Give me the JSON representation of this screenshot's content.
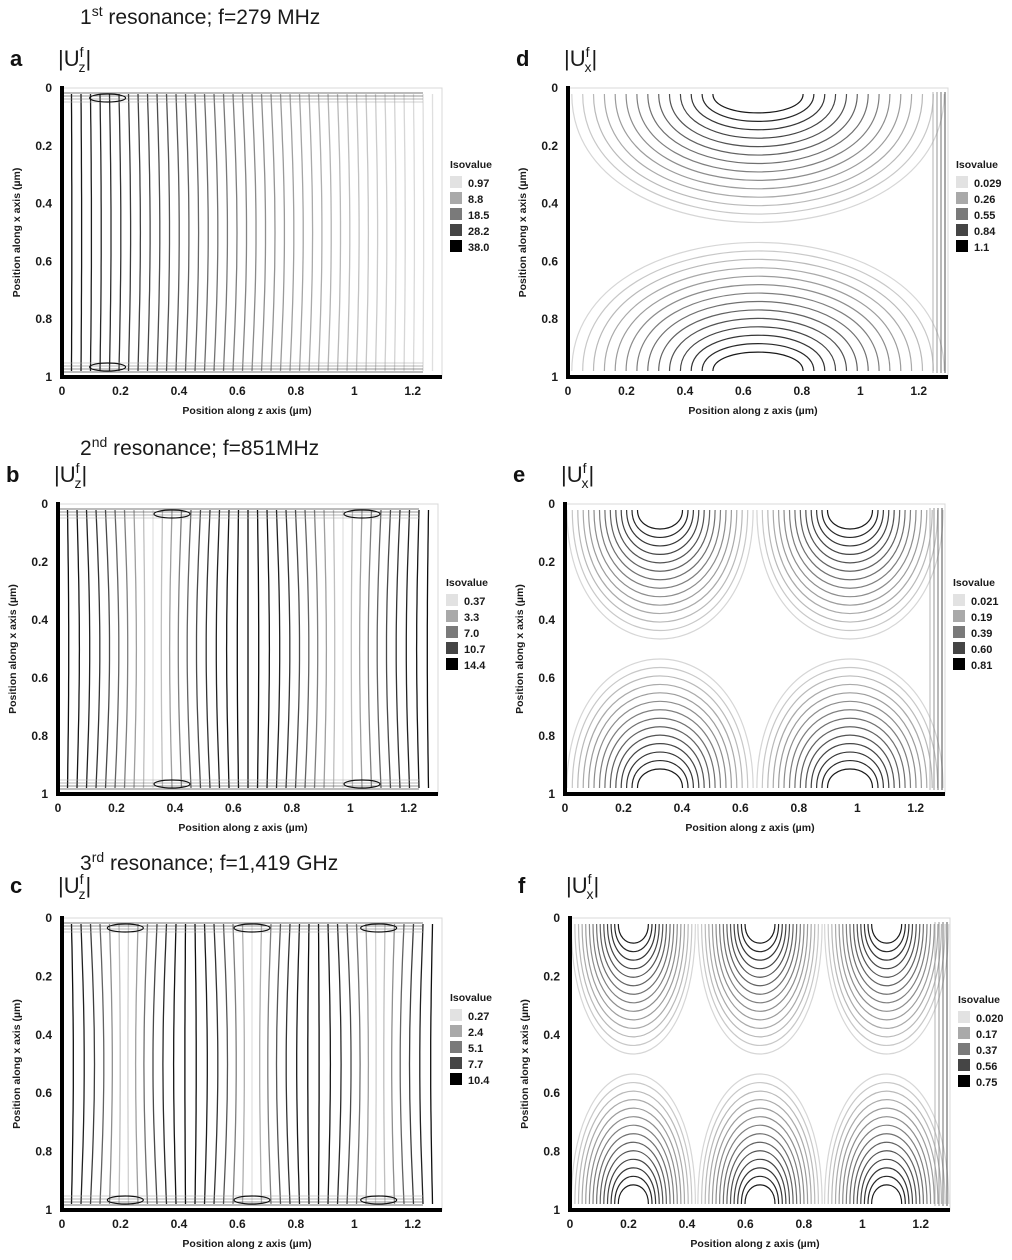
{
  "figure": {
    "resonance_titles": [
      {
        "ordinal": "1",
        "sup": "st",
        "text": " resonance;   f=279 MHz"
      },
      {
        "ordinal": "2",
        "sup": "nd",
        "text": " resonance;   f=851MHz"
      },
      {
        "ordinal": "3",
        "sup": "rd",
        "text": " resonance;   f=1,419 GHz"
      }
    ]
  },
  "chart_data": [
    {
      "type": "contour",
      "panel": "a",
      "quantity": {
        "base": "|U",
        "sup": "f",
        "sub": "z",
        "close": "|"
      },
      "resonance": 1,
      "field": "Uz",
      "antinodes": 0,
      "xlabel": "Position along z axis (µm)",
      "ylabel": "Position along x axis (µm)",
      "xlim": [
        0,
        1.3
      ],
      "ylim": [
        0,
        1
      ],
      "y_inverted": true,
      "xticks": [
        "0",
        "0.2",
        "0.4",
        "0.6",
        "0.8",
        "1",
        "1.2"
      ],
      "yticks": [
        "0",
        "0.2",
        "0.4",
        "0.6",
        "0.8",
        "1"
      ],
      "legend": {
        "title": "Isovalue",
        "values": [
          "0.97",
          "8.8",
          "18.5",
          "28.2",
          "38.0"
        ],
        "shades": [
          "#e2e2e2",
          "#a9a9a9",
          "#7a7a7a",
          "#454545",
          "#000000"
        ]
      }
    },
    {
      "type": "contour",
      "panel": "d",
      "quantity": {
        "base": "|U",
        "sup": "f",
        "sub": "x",
        "close": "|"
      },
      "resonance": 1,
      "field": "Ux",
      "antinodes": 1,
      "xlabel": "Position along z axis (µm)",
      "ylabel": "Position along x axis (µm)",
      "xlim": [
        0,
        1.3
      ],
      "ylim": [
        0,
        1
      ],
      "y_inverted": true,
      "xticks": [
        "0",
        "0.2",
        "0.4",
        "0.6",
        "0.8",
        "1",
        "1.2"
      ],
      "yticks": [
        "0",
        "0.2",
        "0.4",
        "0.6",
        "0.8",
        "1"
      ],
      "legend": {
        "title": "Isovalue",
        "values": [
          "0.029",
          "0.26",
          "0.55",
          "0.84",
          "1.1"
        ],
        "shades": [
          "#e2e2e2",
          "#a9a9a9",
          "#7a7a7a",
          "#454545",
          "#000000"
        ]
      }
    },
    {
      "type": "contour",
      "panel": "b",
      "quantity": {
        "base": "|U",
        "sup": "f",
        "sub": "z",
        "close": "|"
      },
      "resonance": 2,
      "field": "Uz",
      "antinodes": 2,
      "xlabel": "Position along z axis (µm)",
      "ylabel": "Position along x axis (µm)",
      "xlim": [
        0,
        1.3
      ],
      "ylim": [
        0,
        1
      ],
      "y_inverted": true,
      "xticks": [
        "0",
        "0.2",
        "0.4",
        "0.6",
        "0.8",
        "1",
        "1.2"
      ],
      "yticks": [
        "0",
        "0.2",
        "0.4",
        "0.6",
        "0.8",
        "1"
      ],
      "legend": {
        "title": "Isovalue",
        "values": [
          "0.37",
          "3.3",
          "7.0",
          "10.7",
          "14.4"
        ],
        "shades": [
          "#e2e2e2",
          "#a9a9a9",
          "#7a7a7a",
          "#454545",
          "#000000"
        ]
      }
    },
    {
      "type": "contour",
      "panel": "e",
      "quantity": {
        "base": "|U",
        "sup": "f",
        "sub": "x",
        "close": "|"
      },
      "resonance": 2,
      "field": "Ux",
      "antinodes": 2,
      "xlabel": "Position along z axis (µm)",
      "ylabel": "Position along x axis (µm)",
      "xlim": [
        0,
        1.3
      ],
      "ylim": [
        0,
        1
      ],
      "y_inverted": true,
      "xticks": [
        "0",
        "0.2",
        "0.4",
        "0.6",
        "0.8",
        "1",
        "1.2"
      ],
      "yticks": [
        "0",
        "0.2",
        "0.4",
        "0.6",
        "0.8",
        "1"
      ],
      "legend": {
        "title": "Isovalue",
        "values": [
          "0.021",
          "0.19",
          "0.39",
          "0.60",
          "0.81"
        ],
        "shades": [
          "#e2e2e2",
          "#a9a9a9",
          "#7a7a7a",
          "#454545",
          "#000000"
        ]
      }
    },
    {
      "type": "contour",
      "panel": "c",
      "quantity": {
        "base": "|U",
        "sup": "f",
        "sub": "z",
        "close": "|"
      },
      "resonance": 3,
      "field": "Uz",
      "antinodes": 3,
      "xlabel": "Position along z axis (µm)",
      "ylabel": "Position along x axis (µm)",
      "xlim": [
        0,
        1.3
      ],
      "ylim": [
        0,
        1
      ],
      "y_inverted": true,
      "xticks": [
        "0",
        "0.2",
        "0.4",
        "0.6",
        "0.8",
        "1",
        "1.2"
      ],
      "yticks": [
        "0",
        "0.2",
        "0.4",
        "0.6",
        "0.8",
        "1"
      ],
      "legend": {
        "title": "Isovalue",
        "values": [
          "0.27",
          "2.4",
          "5.1",
          "7.7",
          "10.4"
        ],
        "shades": [
          "#e2e2e2",
          "#a9a9a9",
          "#7a7a7a",
          "#454545",
          "#000000"
        ]
      }
    },
    {
      "type": "contour",
      "panel": "f",
      "quantity": {
        "base": "|U",
        "sup": "f",
        "sub": "x",
        "close": "|"
      },
      "resonance": 3,
      "field": "Ux",
      "antinodes": 3,
      "xlabel": "Position along z axis (µm)",
      "ylabel": "Position along x axis (µm)",
      "xlim": [
        0,
        1.3
      ],
      "ylim": [
        0,
        1
      ],
      "y_inverted": true,
      "xticks": [
        "0",
        "0.2",
        "0.4",
        "0.6",
        "0.8",
        "1",
        "1.2"
      ],
      "yticks": [
        "0",
        "0.2",
        "0.4",
        "0.6",
        "0.8",
        "1"
      ],
      "legend": {
        "title": "Isovalue",
        "values": [
          "0.020",
          "0.17",
          "0.37",
          "0.56",
          "0.75"
        ],
        "shades": [
          "#e2e2e2",
          "#a9a9a9",
          "#7a7a7a",
          "#454545",
          "#000000"
        ]
      }
    }
  ]
}
